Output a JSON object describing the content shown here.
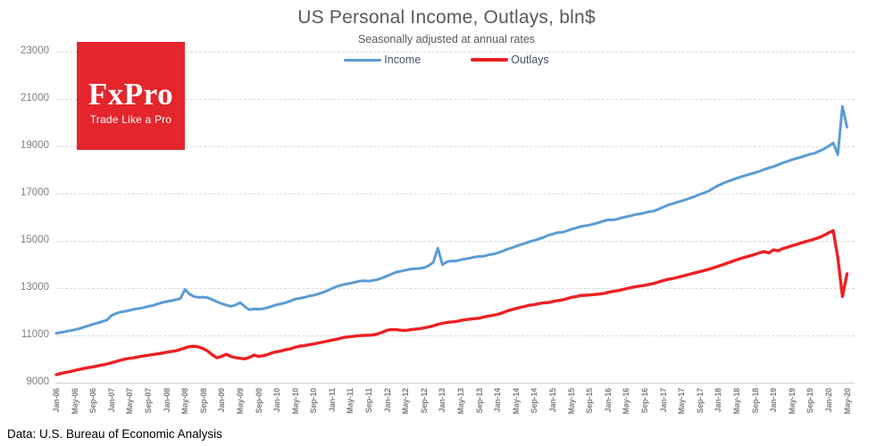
{
  "header": {
    "title": "US Personal Income, Outlays, bln$",
    "subtitle": "Seasonally adjusted at annual rates"
  },
  "logo": {
    "brand": "FxPro",
    "tagline": "Trade Like a Pro",
    "bg_color": "#e4252c",
    "text_color": "#ffffff"
  },
  "footer": {
    "source": "Data: U.S. Bureau of Economic Analysis"
  },
  "chart_data": {
    "type": "line",
    "title": "US Personal Income, Outlays, bln$",
    "subtitle": "Seasonally adjusted at annual rates",
    "x_start": "Jan-06",
    "x_end": "May-20",
    "x_frequency": "monthly",
    "n_points": 173,
    "x_tick_every_months": 4,
    "x_tick_labels": [
      "Jan-06",
      "May-06",
      "Sep-06",
      "Jan-07",
      "May-07",
      "Sep-07",
      "Jan-08",
      "May-08",
      "Sep-08",
      "Jan-09",
      "May-09",
      "Sep-09",
      "Jan-10",
      "May-10",
      "Sep-10",
      "Jan-11",
      "May-11",
      "Sep-11",
      "Jan-12",
      "May-12",
      "Sep-12",
      "Jan-13",
      "May-13",
      "Sep-13",
      "Jan-14",
      "May-14",
      "Sep-14",
      "Jan-15",
      "May-15",
      "Sep-15",
      "Jan-16",
      "May-16",
      "Sep-16",
      "Jan-17",
      "May-17",
      "Sep-17",
      "Jan-18",
      "May-18",
      "Sep-18",
      "Jan-19",
      "May-19",
      "Sep-19",
      "Jan-20",
      "May-20"
    ],
    "y_ticks": [
      9000,
      11000,
      13000,
      15000,
      17000,
      19000,
      21000,
      23000
    ],
    "ylim": [
      9000,
      23000
    ],
    "grid": "horizontal-dashed",
    "legend_position": "top-center",
    "series": [
      {
        "name": "Income",
        "color": "#5b9bd5",
        "values": [
          11100,
          11140,
          11170,
          11210,
          11250,
          11300,
          11360,
          11420,
          11480,
          11540,
          11600,
          11660,
          11850,
          11940,
          12000,
          12030,
          12070,
          12120,
          12150,
          12190,
          12240,
          12270,
          12340,
          12400,
          12440,
          12480,
          12520,
          12570,
          12950,
          12760,
          12650,
          12620,
          12630,
          12600,
          12520,
          12430,
          12350,
          12290,
          12240,
          12300,
          12400,
          12230,
          12100,
          12130,
          12120,
          12140,
          12190,
          12250,
          12310,
          12350,
          12400,
          12470,
          12550,
          12580,
          12620,
          12680,
          12710,
          12770,
          12830,
          12900,
          13000,
          13080,
          13140,
          13180,
          13220,
          13260,
          13310,
          13320,
          13310,
          13340,
          13380,
          13450,
          13530,
          13610,
          13690,
          13730,
          13770,
          13810,
          13830,
          13840,
          13880,
          13960,
          14100,
          14700,
          14000,
          14130,
          14160,
          14160,
          14210,
          14250,
          14280,
          14330,
          14350,
          14360,
          14420,
          14450,
          14500,
          14570,
          14650,
          14710,
          14780,
          14850,
          14910,
          14980,
          15030,
          15090,
          15160,
          15250,
          15300,
          15360,
          15370,
          15430,
          15500,
          15550,
          15610,
          15650,
          15680,
          15730,
          15780,
          15850,
          15900,
          15890,
          15930,
          15990,
          16030,
          16070,
          16130,
          16150,
          16200,
          16240,
          16270,
          16350,
          16440,
          16520,
          16580,
          16640,
          16700,
          16760,
          16830,
          16900,
          16980,
          17050,
          17130,
          17250,
          17350,
          17440,
          17520,
          17590,
          17660,
          17720,
          17780,
          17840,
          17890,
          17960,
          18030,
          18100,
          18150,
          18230,
          18310,
          18370,
          18440,
          18500,
          18550,
          18620,
          18680,
          18720,
          18810,
          18900,
          19020,
          19150,
          18660,
          20700,
          19820
        ]
      },
      {
        "name": "Outlays",
        "color": "#ed2024",
        "values": [
          9350,
          9400,
          9440,
          9480,
          9530,
          9570,
          9610,
          9650,
          9680,
          9720,
          9760,
          9800,
          9850,
          9910,
          9960,
          10010,
          10040,
          10070,
          10110,
          10140,
          10170,
          10200,
          10230,
          10260,
          10300,
          10330,
          10360,
          10420,
          10480,
          10540,
          10550,
          10520,
          10450,
          10340,
          10180,
          10060,
          10130,
          10210,
          10120,
          10070,
          10040,
          10020,
          10080,
          10180,
          10120,
          10150,
          10200,
          10280,
          10320,
          10360,
          10410,
          10450,
          10510,
          10560,
          10580,
          10620,
          10650,
          10690,
          10730,
          10770,
          10810,
          10850,
          10900,
          10940,
          10960,
          10980,
          11000,
          11010,
          11020,
          11030,
          11080,
          11150,
          11230,
          11260,
          11250,
          11230,
          11220,
          11250,
          11270,
          11290,
          11330,
          11370,
          11410,
          11480,
          11520,
          11560,
          11580,
          11600,
          11640,
          11680,
          11700,
          11720,
          11740,
          11790,
          11830,
          11860,
          11900,
          11960,
          12040,
          12100,
          12150,
          12200,
          12240,
          12290,
          12310,
          12360,
          12390,
          12400,
          12440,
          12480,
          12510,
          12560,
          12620,
          12650,
          12700,
          12710,
          12720,
          12740,
          12760,
          12780,
          12830,
          12870,
          12900,
          12940,
          12990,
          13030,
          13070,
          13100,
          13130,
          13170,
          13210,
          13270,
          13330,
          13380,
          13410,
          13460,
          13510,
          13560,
          13610,
          13660,
          13710,
          13760,
          13810,
          13870,
          13940,
          14000,
          14070,
          14140,
          14210,
          14270,
          14330,
          14380,
          14440,
          14510,
          14560,
          14500,
          14630,
          14590,
          14680,
          14740,
          14800,
          14860,
          14920,
          14980,
          15030,
          15090,
          15150,
          15250,
          15350,
          15440,
          14300,
          12660,
          13620
        ]
      }
    ]
  }
}
